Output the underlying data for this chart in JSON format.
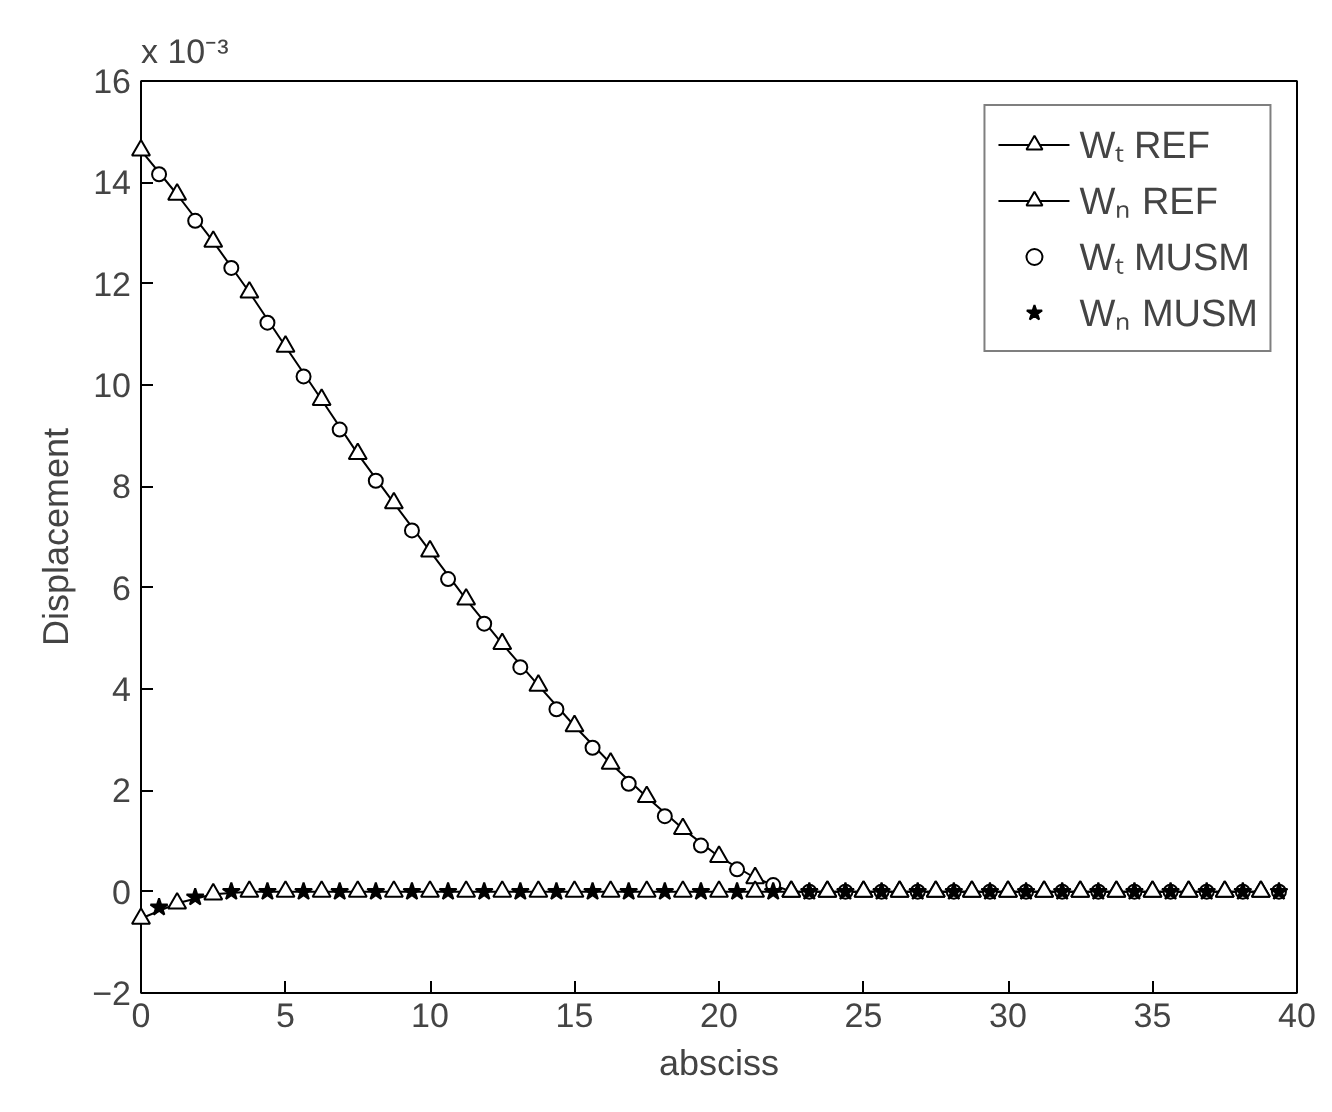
{
  "chart_data": {
    "type": "line",
    "xlabel": "absciss",
    "ylabel": "Displacement",
    "annotations": [
      "x 10⁻³"
    ],
    "xlim": [
      0,
      40
    ],
    "ylim": [
      -2,
      16
    ],
    "xticks": [
      0,
      5,
      10,
      15,
      20,
      25,
      30,
      35,
      40
    ],
    "yticks": [
      -2,
      0,
      2,
      4,
      6,
      8,
      10,
      12,
      14,
      16
    ],
    "grid": false,
    "legend": "top right",
    "series": [
      {
        "name": "Wₜ REF",
        "marker": "triangle",
        "color": "#000000",
        "x": [
          0,
          1.25,
          2.5,
          3.75,
          5,
          6.25,
          7.5,
          8.75,
          10,
          11.25,
          12.5,
          13.75,
          15,
          16.25,
          17.5,
          18.75,
          20,
          21.25,
          22.5,
          23.75,
          25,
          26.25,
          27.5,
          28.75,
          30,
          31.25,
          32.5,
          33.75,
          35,
          36.25,
          37.5,
          38.75
        ],
        "values": [
          14.63,
          13.76,
          12.83,
          11.83,
          10.76,
          9.71,
          8.64,
          7.67,
          6.72,
          5.77,
          4.89,
          4.07,
          3.27,
          2.53,
          1.87,
          1.24,
          0.69,
          0.27,
          0,
          0,
          0,
          0,
          0,
          0,
          0,
          0,
          0,
          0,
          0,
          0,
          0,
          0
        ]
      },
      {
        "name": "Wₙ REF",
        "marker": "triangle",
        "color": "#000000",
        "x": [
          0,
          1.25,
          2.5,
          3.75,
          5,
          6.25,
          7.5,
          8.75,
          10,
          11.25,
          12.5,
          13.75,
          15,
          16.25,
          17.5,
          18.75,
          20,
          21.25,
          22.5,
          23.75,
          25,
          26.25,
          27.5,
          28.75,
          30,
          31.25,
          32.5,
          33.75,
          35,
          36.25,
          37.5,
          38.75
        ],
        "values": [
          -0.53,
          -0.23,
          -0.05,
          0,
          0,
          0,
          0,
          0,
          0,
          0,
          0,
          0,
          0,
          0,
          0,
          0,
          0,
          0,
          0,
          0,
          0,
          0,
          0,
          0,
          0,
          0,
          0,
          0,
          0,
          0,
          0,
          0
        ]
      },
      {
        "name": "Wₜ MUSM",
        "type": "scatter",
        "marker": "circle",
        "color": "#000000",
        "x": [
          0.625,
          1.875,
          3.125,
          4.375,
          5.625,
          6.875,
          8.125,
          9.375,
          10.625,
          11.875,
          13.125,
          14.375,
          15.625,
          16.875,
          18.125,
          19.375,
          20.625,
          21.875,
          23.125,
          24.375,
          25.625,
          26.875,
          28.125,
          29.375,
          30.625,
          31.875,
          33.125,
          34.375,
          35.625,
          36.875,
          38.125,
          39.375
        ],
        "values": [
          14.16,
          13.24,
          12.31,
          11.23,
          10.17,
          9.12,
          8.11,
          7.13,
          6.17,
          5.29,
          4.43,
          3.6,
          2.84,
          2.13,
          1.49,
          0.91,
          0.44,
          0.13,
          0,
          0,
          0,
          0,
          0,
          0,
          0,
          0,
          0,
          0,
          0,
          0,
          0,
          0
        ]
      },
      {
        "name": "Wₙ MUSM",
        "type": "scatter",
        "marker": "star",
        "color": "#000000",
        "x": [
          0.625,
          1.875,
          3.125,
          4.375,
          5.625,
          6.875,
          8.125,
          9.375,
          10.625,
          11.875,
          13.125,
          14.375,
          15.625,
          16.875,
          18.125,
          19.375,
          20.625,
          21.875,
          23.125,
          24.375,
          25.625,
          26.875,
          28.125,
          29.375,
          30.625,
          31.875,
          33.125,
          34.375,
          35.625,
          36.875,
          38.125,
          39.375
        ],
        "values": [
          -0.31,
          -0.11,
          0,
          0,
          0,
          0,
          0,
          0,
          0,
          0,
          0,
          0,
          0,
          0,
          0,
          0,
          0,
          0,
          0,
          0,
          0,
          0,
          0,
          0,
          0,
          0,
          0,
          0,
          0,
          0,
          0,
          0
        ]
      }
    ]
  }
}
